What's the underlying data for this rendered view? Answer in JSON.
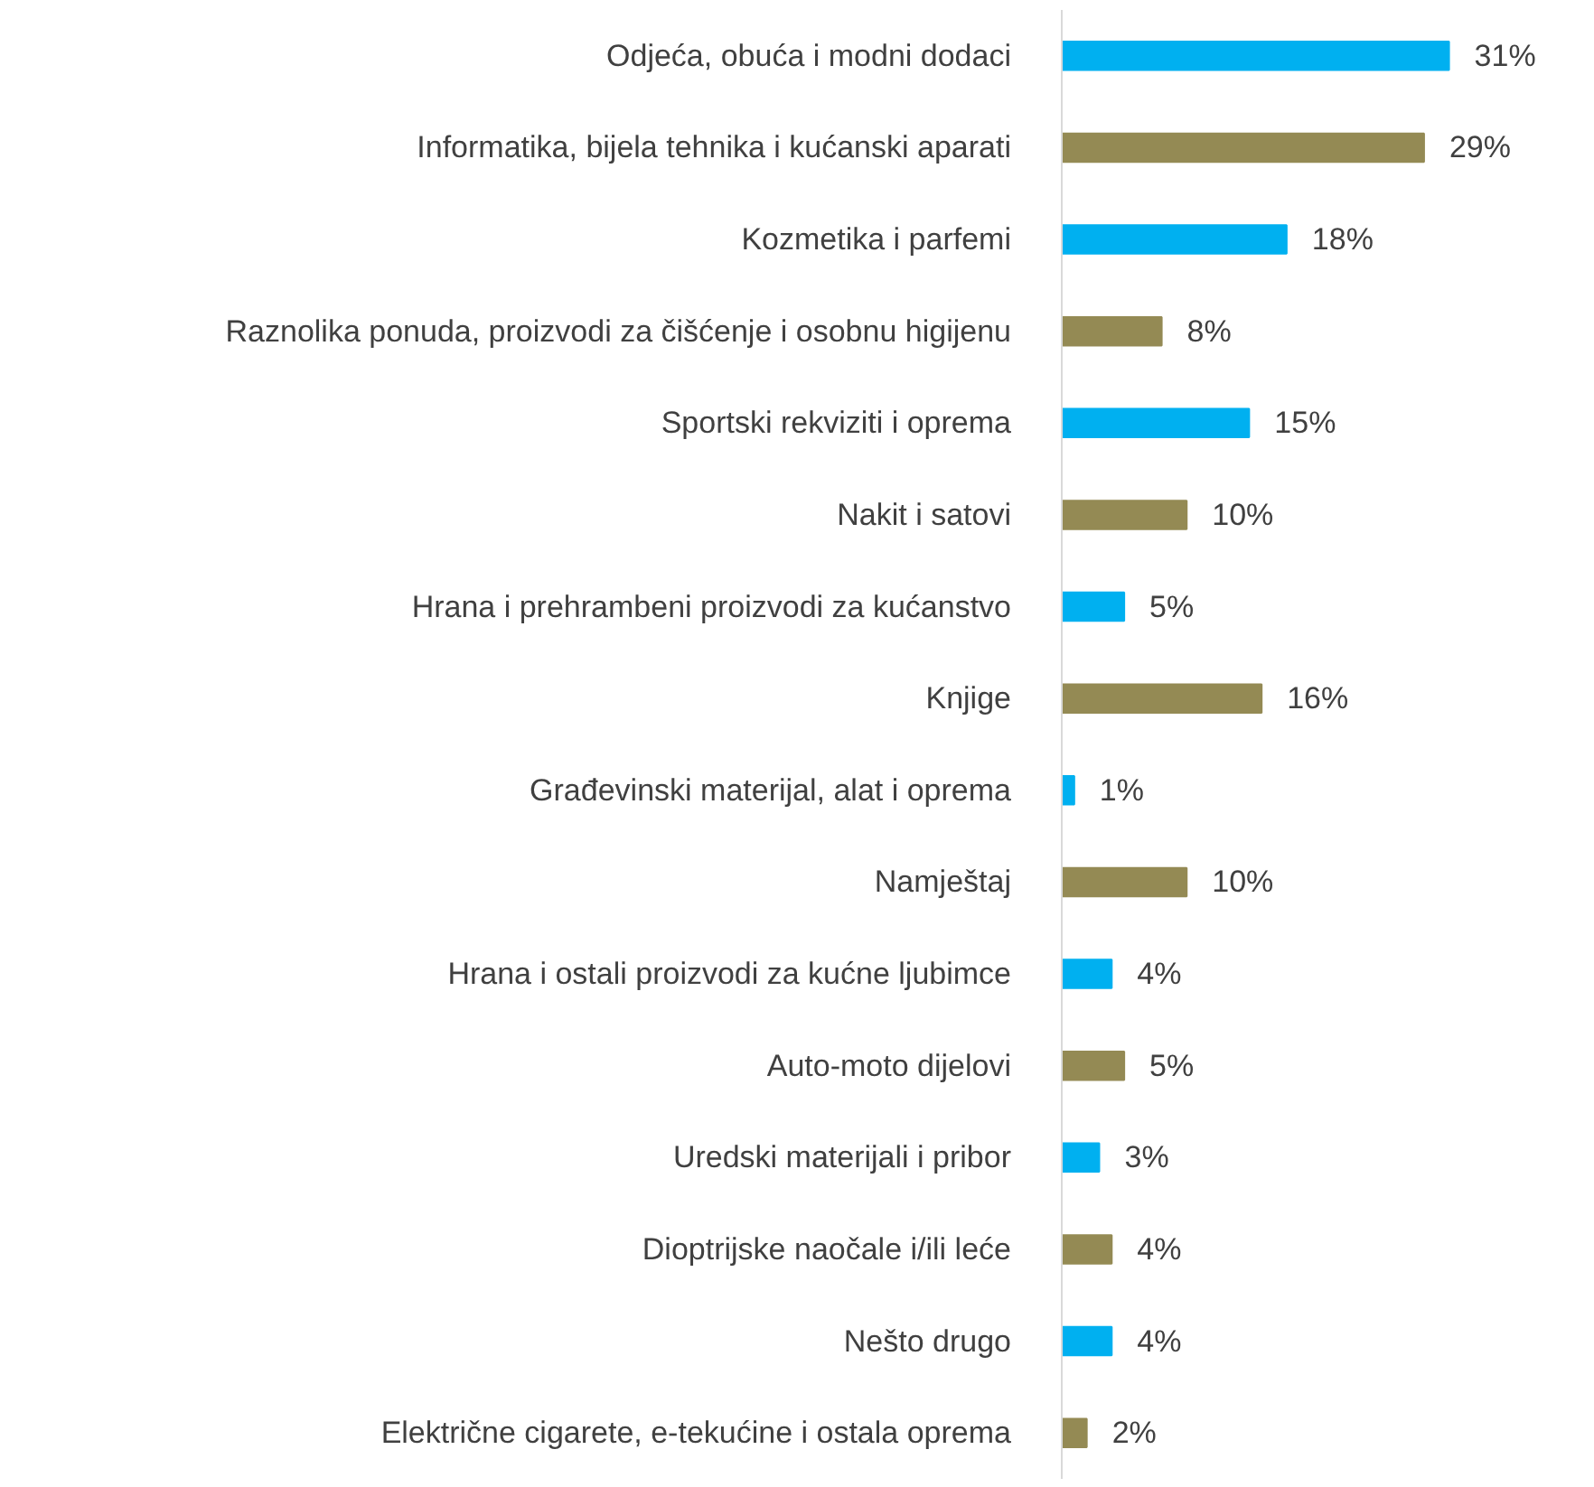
{
  "chart_data": {
    "type": "bar",
    "orientation": "horizontal",
    "categories": [
      "Odjeća, obuća i modni dodaci",
      "Informatika, bijela tehnika i kućanski aparati",
      "Kozmetika i parfemi",
      "Raznolika ponuda, proizvodi za čišćenje i osobnu higijenu",
      "Sportski rekviziti i oprema",
      "Nakit i satovi",
      "Hrana i prehrambeni proizvodi za kućanstvo",
      "Knjige",
      "Građevinski materijal, alat i oprema",
      "Namještaj",
      "Hrana i ostali proizvodi za kućne ljubimce",
      "Auto-moto dijelovi",
      "Uredski materijali i pribor",
      "Dioptrijske naočale i/ili leće",
      "Nešto drugo",
      "Električne cigarete, e-tekućine i ostala oprema"
    ],
    "values": [
      31,
      29,
      18,
      8,
      15,
      10,
      5,
      16,
      1,
      10,
      4,
      5,
      3,
      4,
      4,
      2
    ],
    "value_labels": [
      "31%",
      "29%",
      "18%",
      "8%",
      "15%",
      "10%",
      "5%",
      "16%",
      "1%",
      "10%",
      "4%",
      "5%",
      "3%",
      "4%",
      "4%",
      "2%"
    ],
    "colors": [
      "#00b0f0",
      "#948a54",
      "#00b0f0",
      "#948a54",
      "#00b0f0",
      "#948a54",
      "#00b0f0",
      "#948a54",
      "#00b0f0",
      "#948a54",
      "#00b0f0",
      "#948a54",
      "#00b0f0",
      "#948a54",
      "#00b0f0",
      "#948a54"
    ],
    "grid": false
  }
}
